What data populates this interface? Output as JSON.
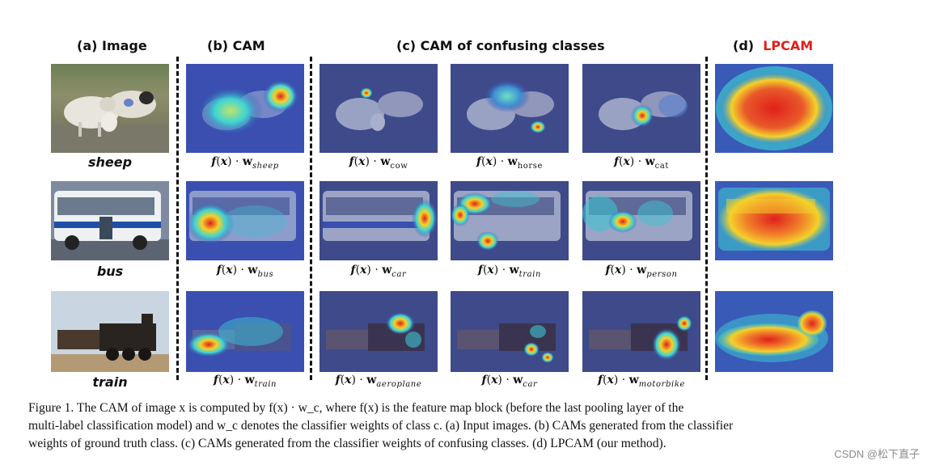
{
  "headers": {
    "a": "(a)  Image",
    "b": "(b)  CAM",
    "c": "(c)  CAM of confusing classes",
    "d_prefix": "(d)",
    "d_name": "LPCAM"
  },
  "rows": [
    {
      "label": "sheep",
      "captions": [
        "sheep",
        "cow",
        "horse",
        "cat"
      ]
    },
    {
      "label": "bus",
      "captions": [
        "bus",
        "car",
        "train",
        "person"
      ]
    },
    {
      "label": "train",
      "captions": [
        "train",
        "aeroplane",
        "car",
        "motorbike"
      ]
    }
  ],
  "formula_prefix": "f(x) · w",
  "caption_lines": [
    "Figure 1.  The CAM of image x is computed by f(x) · w_c, where f(x) is the feature map block (before the last pooling layer of the",
    "multi-label classification model) and w_c denotes the classifier weights of class c. (a) Input images. (b) CAMs generated from the classifier",
    "weights of ground truth class. (c) CAMs generated from the classifier weights of confusing classes. (d) LPCAM (our method)."
  ],
  "watermark": "CSDN @松下直子",
  "colors": {
    "lpcam_label": "#e0201c",
    "cam_overlay": "#3a4fb0"
  }
}
